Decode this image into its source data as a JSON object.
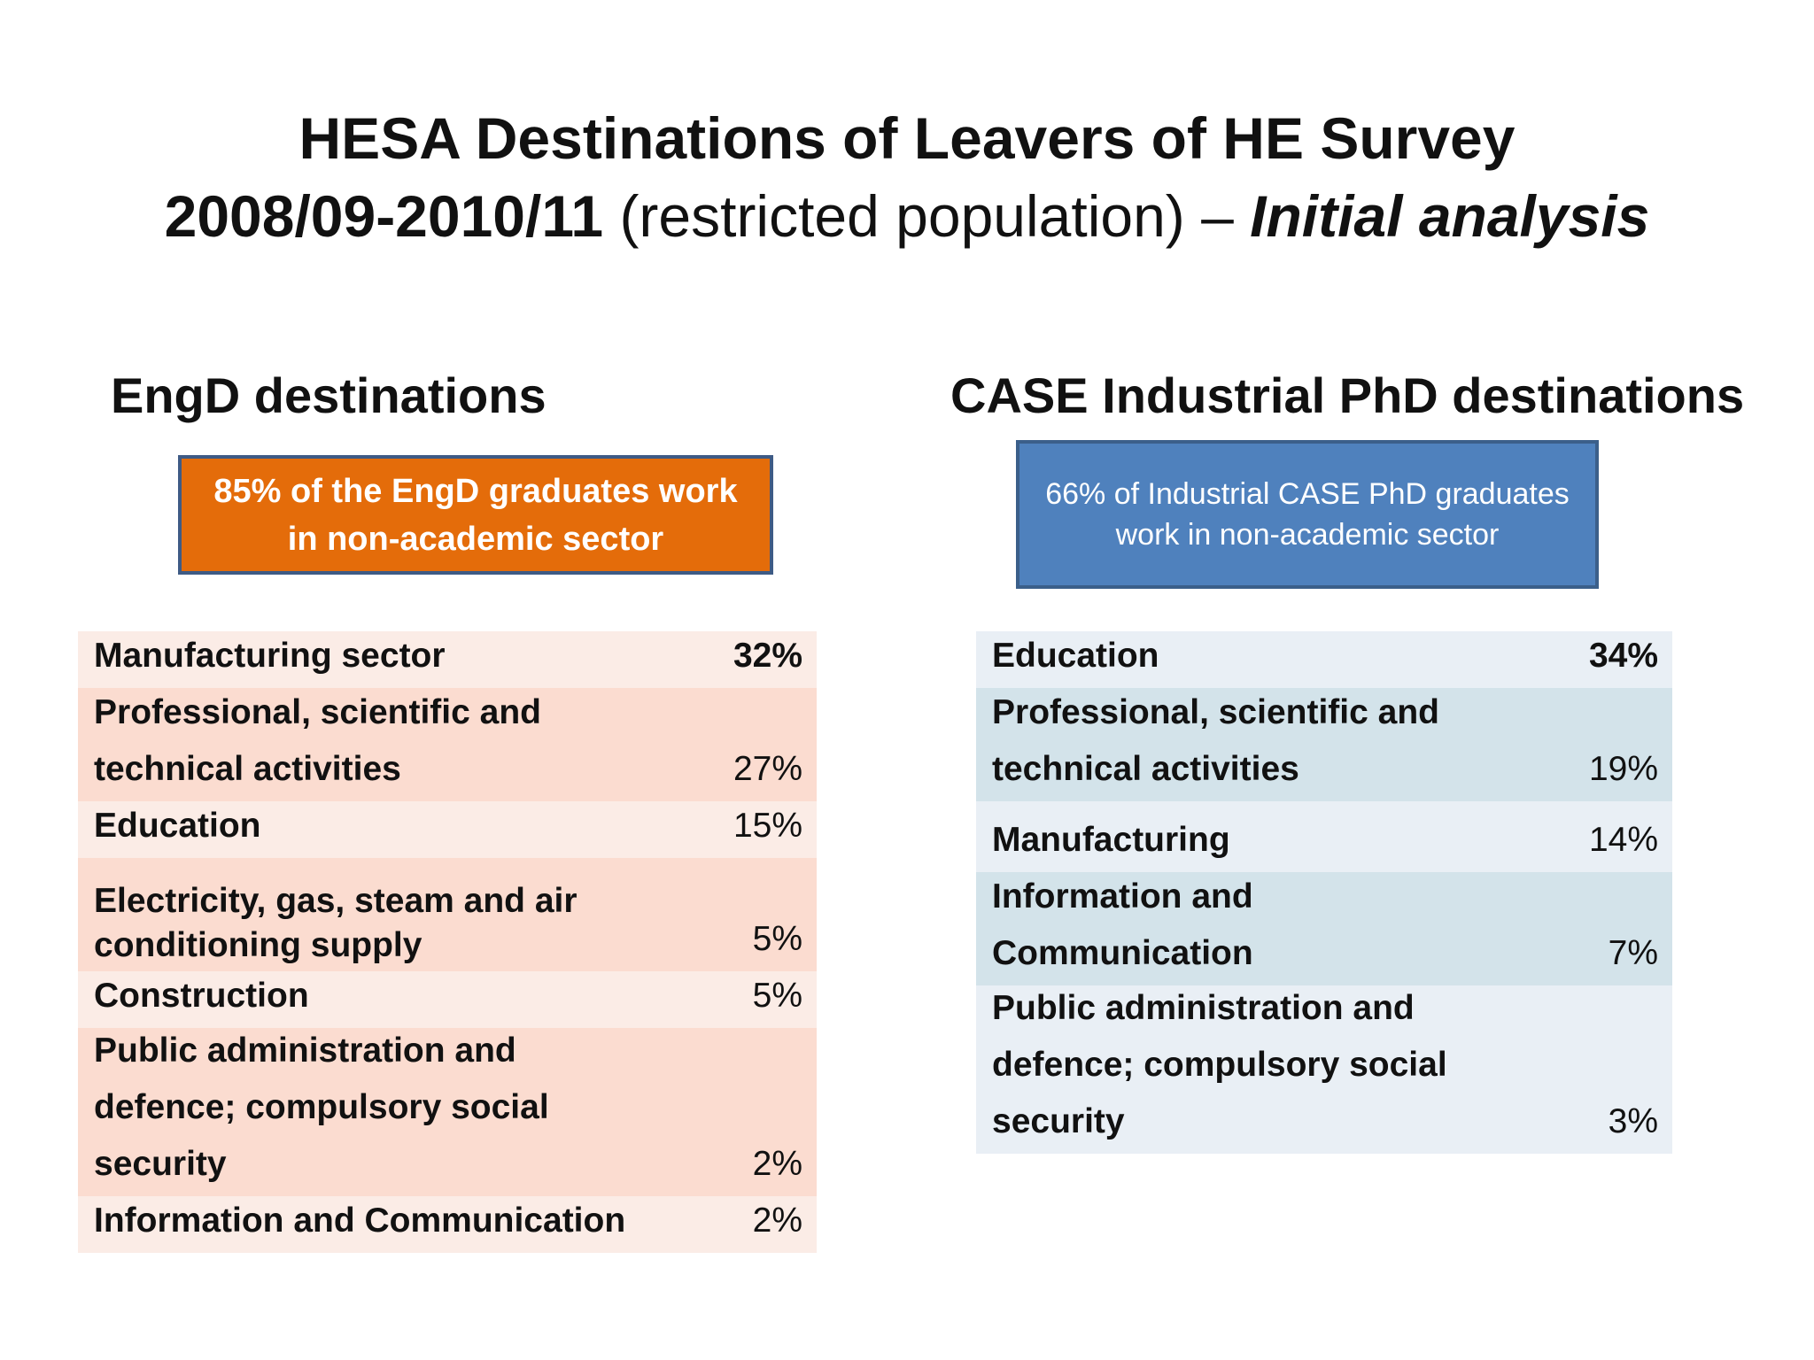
{
  "title": {
    "line1": "HESA Destinations of Leavers of HE Survey",
    "line2_bold": "2008/09-2010/11",
    "line2_regular": " (restricted population) – ",
    "line2_italic": "Initial analysis"
  },
  "engd": {
    "heading": "EngD destinations",
    "callout": "85% of the EngD graduates work in non-academic sector",
    "rows": [
      {
        "label": "Manufacturing sector",
        "value": "32%"
      },
      {
        "label": "Professional, scientific and technical activities",
        "value": "27%"
      },
      {
        "label": "Education",
        "value": "15%"
      },
      {
        "label": "Electricity, gas, steam and air conditioning supply",
        "value": "5%"
      },
      {
        "label": "Construction",
        "value": "5%"
      },
      {
        "label": " Public administration and defence; compulsory social security",
        "value": "2%"
      },
      {
        "label": "Information and Communication",
        "value": "2%"
      }
    ]
  },
  "case": {
    "heading": "CASE Industrial PhD destinations",
    "callout": "66% of Industrial CASE PhD graduates work in non-academic sector",
    "rows": [
      {
        "label": "Education",
        "value": "34%"
      },
      {
        "label": "Professional, scientific and technical activities",
        "value": "19%"
      },
      {
        "label": "Manufacturing",
        "value": "14%"
      },
      {
        "label": "Information and Communication",
        "value": "7%"
      },
      {
        "label": " Public administration and defence; compulsory social security",
        "value": "3%"
      }
    ]
  },
  "colors": {
    "engd_callout": "#e46c0a",
    "case_callout": "#4f81bd",
    "engd_row_light": "#fbece6",
    "engd_row_dark": "#fbdcd0",
    "case_row_light": "#e9eff5",
    "case_row_dark": "#d3e3ea"
  }
}
